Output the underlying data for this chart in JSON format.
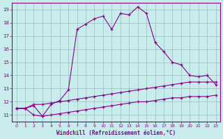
{
  "xlabel": "Windchill (Refroidissement éolien,°C)",
  "bg_color": "#c8ecec",
  "line_color": "#880088",
  "grid_color": "#99bbbb",
  "xlim": [
    -0.5,
    23.5
  ],
  "ylim": [
    10.5,
    19.5
  ],
  "yticks": [
    11,
    12,
    13,
    14,
    15,
    16,
    17,
    18,
    19
  ],
  "xticks": [
    0,
    1,
    2,
    3,
    4,
    5,
    6,
    7,
    8,
    9,
    10,
    11,
    12,
    13,
    14,
    15,
    16,
    17,
    18,
    19,
    20,
    21,
    22,
    23
  ],
  "series1_x": [
    0,
    1,
    2,
    3,
    4,
    5,
    6,
    7,
    8,
    9,
    10,
    11,
    12,
    13,
    14,
    15,
    16,
    17,
    18,
    19,
    20,
    21,
    22,
    23
  ],
  "series1_y": [
    11.5,
    11.5,
    11.7,
    10.9,
    11.8,
    12.1,
    12.9,
    17.5,
    17.9,
    18.3,
    18.5,
    17.5,
    18.7,
    18.6,
    19.2,
    18.7,
    16.5,
    15.8,
    15.0,
    14.8,
    14.0,
    13.9,
    14.0,
    13.3
  ],
  "series2_x": [
    0,
    1,
    2,
    3,
    4,
    5,
    6,
    7,
    8,
    9,
    10,
    11,
    12,
    13,
    14,
    15,
    16,
    17,
    18,
    19,
    20,
    21,
    22,
    23
  ],
  "series2_y": [
    11.5,
    11.5,
    11.8,
    11.8,
    11.9,
    12.0,
    12.1,
    12.2,
    12.3,
    12.4,
    12.5,
    12.6,
    12.7,
    12.8,
    12.9,
    13.0,
    13.1,
    13.2,
    13.3,
    13.4,
    13.5,
    13.5,
    13.5,
    13.5
  ],
  "series3_x": [
    0,
    1,
    2,
    3,
    4,
    5,
    6,
    7,
    8,
    9,
    10,
    11,
    12,
    13,
    14,
    15,
    16,
    17,
    18,
    19,
    20,
    21,
    22,
    23
  ],
  "series3_y": [
    11.5,
    11.5,
    11.0,
    10.9,
    11.0,
    11.1,
    11.2,
    11.3,
    11.4,
    11.5,
    11.6,
    11.7,
    11.8,
    11.9,
    12.0,
    12.0,
    12.1,
    12.2,
    12.3,
    12.3,
    12.4,
    12.4,
    12.4,
    12.5
  ]
}
